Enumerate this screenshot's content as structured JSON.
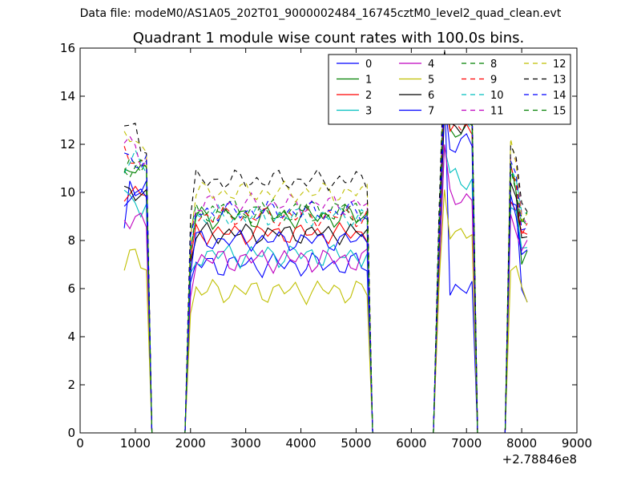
{
  "figure": {
    "suptitle": "Data file: modeM0/AS1A05_202T01_9000002484_16745cztM0_level2_quad_clean.evt",
    "title": "Quadrant 1 module wise count rates with 100.0s bins.",
    "x_offset_label": "+2.78846e8"
  },
  "chart_data": {
    "type": "line",
    "title": "Quadrant 1 module wise count rates with 100.0s bins.",
    "xlabel": "",
    "ylabel": "",
    "x_offset": "+2.78846e8",
    "xlim": [
      0,
      9000
    ],
    "ylim": [
      0,
      16
    ],
    "xticks": [
      0,
      1000,
      2000,
      3000,
      4000,
      5000,
      6000,
      7000,
      8000,
      9000
    ],
    "yticks": [
      0,
      2,
      4,
      6,
      8,
      10,
      12,
      14,
      16
    ],
    "grid": false,
    "legend": "top-right",
    "x": [
      800,
      900,
      1000,
      1100,
      1200,
      1300,
      1400,
      1500,
      1600,
      1700,
      1800,
      1900,
      2000,
      2100,
      2200,
      2300,
      2400,
      2500,
      2600,
      2700,
      2800,
      2900,
      3000,
      3100,
      3200,
      3300,
      3400,
      3500,
      3600,
      3700,
      3800,
      3900,
      4000,
      4100,
      4200,
      4300,
      4400,
      4500,
      4600,
      4700,
      4800,
      4900,
      5000,
      5100,
      5200,
      5300,
      5400,
      5500,
      5600,
      5700,
      5800,
      5900,
      6000,
      6100,
      6200,
      6300,
      6400,
      6500,
      6600,
      6700,
      6800,
      6900,
      7000,
      7100,
      7200,
      7300,
      7400,
      7500,
      7600,
      7700,
      7800,
      7900,
      8000,
      8100
    ],
    "series": [
      {
        "name": "0",
        "color": "#0000ff",
        "dash": "solid",
        "levels": [
          8.3,
          11.7,
          10.5,
          0,
          7.0,
          15.2,
          6.0,
          0,
          9.5,
          6.0
        ],
        "amp": 0.35
      },
      {
        "name": "1",
        "color": "#008000",
        "dash": "solid",
        "levels": [
          10.6,
          11.8,
          11.0,
          0,
          9.0,
          14.8,
          12.5,
          0,
          10.8,
          7.5
        ],
        "amp": 0.35
      },
      {
        "name": "2",
        "color": "#ff0000",
        "dash": "solid",
        "levels": [
          10.0,
          10.2,
          10.0,
          0,
          8.3,
          14.0,
          12.8,
          0,
          10.0,
          8.2
        ],
        "amp": 0.3
      },
      {
        "name": "3",
        "color": "#00bfbf",
        "dash": "solid",
        "levels": [
          10.1,
          9.5,
          9.0,
          0,
          7.4,
          12.2,
          10.5,
          0,
          9.5,
          7.8
        ],
        "amp": 0.35
      },
      {
        "name": "4",
        "color": "#bf00bf",
        "dash": "solid",
        "levels": [
          8.9,
          8.7,
          8.6,
          0,
          7.2,
          11.5,
          9.8,
          0,
          9.0,
          7.5
        ],
        "amp": 0.35
      },
      {
        "name": "5",
        "color": "#bfbf00",
        "dash": "solid",
        "levels": [
          7.0,
          7.4,
          7.1,
          0,
          5.9,
          10.0,
          8.4,
          0,
          7.0,
          5.6
        ],
        "amp": 0.35
      },
      {
        "name": "6",
        "color": "#000000",
        "dash": "solid",
        "levels": [
          9.8,
          10.1,
          10.0,
          0,
          8.3,
          13.5,
          12.8,
          0,
          10.0,
          8.4
        ],
        "amp": 0.3
      },
      {
        "name": "7",
        "color": "#0000ff",
        "dash": "solid",
        "levels": [
          9.4,
          10.5,
          10.1,
          0,
          8.0,
          13.8,
          12.0,
          0,
          9.8,
          7.5
        ],
        "amp": 0.3
      },
      {
        "name": "8",
        "color": "#008000",
        "dash": "dashed",
        "levels": [
          11.0,
          11.6,
          11.2,
          0,
          9.3,
          15.5,
          13.2,
          0,
          11.0,
          8.9
        ],
        "amp": 0.3
      },
      {
        "name": "9",
        "color": "#ff0000",
        "dash": "dashed",
        "levels": [
          11.8,
          11.2,
          11.0,
          0,
          9.0,
          14.8,
          12.8,
          0,
          11.0,
          8.5
        ],
        "amp": 0.3
      },
      {
        "name": "10",
        "color": "#00bfbf",
        "dash": "dashed",
        "levels": [
          11.2,
          11.5,
          11.0,
          0,
          9.0,
          15.0,
          13.0,
          0,
          11.3,
          8.8
        ],
        "amp": 0.3
      },
      {
        "name": "11",
        "color": "#bf00bf",
        "dash": "dashed",
        "levels": [
          12.0,
          11.8,
          11.2,
          0,
          9.5,
          15.3,
          13.3,
          0,
          11.5,
          8.9
        ],
        "amp": 0.3
      },
      {
        "name": "12",
        "color": "#bfbf00",
        "dash": "dashed",
        "levels": [
          12.2,
          12.2,
          11.8,
          0,
          10.0,
          15.6,
          13.6,
          0,
          11.8,
          9.0
        ],
        "amp": 0.3
      },
      {
        "name": "13",
        "color": "#000000",
        "dash": "dashed",
        "levels": [
          12.9,
          12.5,
          12.0,
          0,
          10.5,
          16.0,
          14.0,
          0,
          12.1,
          9.4
        ],
        "amp": 0.3
      },
      {
        "name": "14",
        "color": "#0000ff",
        "dash": "dashed",
        "levels": [
          11.4,
          11.6,
          11.2,
          0,
          9.2,
          15.2,
          13.2,
          0,
          11.2,
          8.8
        ],
        "amp": 0.3
      },
      {
        "name": "15",
        "color": "#008000",
        "dash": "dashed",
        "levels": [
          11.0,
          11.2,
          11.0,
          0,
          9.1,
          15.4,
          13.5,
          0,
          11.0,
          8.8
        ],
        "amp": 0.3
      }
    ]
  }
}
